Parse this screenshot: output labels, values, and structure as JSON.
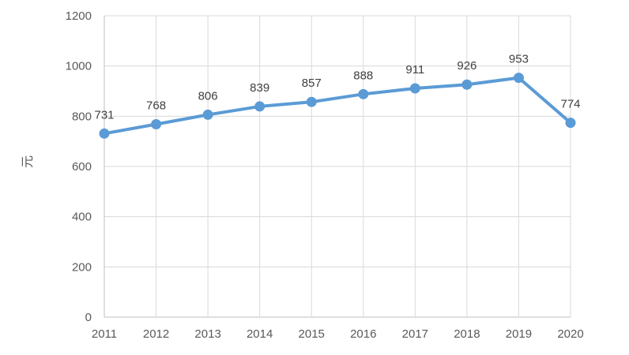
{
  "chart_data": {
    "type": "line",
    "categories": [
      "2011",
      "2012",
      "2013",
      "2014",
      "2015",
      "2016",
      "2017",
      "2018",
      "2019",
      "2020"
    ],
    "series": [
      {
        "name": "value",
        "values": [
          731,
          768,
          806,
          839,
          857,
          888,
          911,
          926,
          953,
          774
        ]
      }
    ],
    "title": "",
    "xlabel": "",
    "ylabel": "元",
    "ylim": [
      0,
      1200
    ],
    "yticks": [
      0,
      200,
      400,
      600,
      800,
      1000,
      1200
    ],
    "grid": true,
    "legend_position": "none",
    "data_labels_shown": true,
    "colors": {
      "line": "#5B9BD5",
      "marker": "#5B9BD5",
      "gridline": "#DADADA",
      "axis_line": "#BFBFBF",
      "tick_label": "#595959",
      "data_label": "#404040",
      "background": "#FFFFFF"
    }
  }
}
